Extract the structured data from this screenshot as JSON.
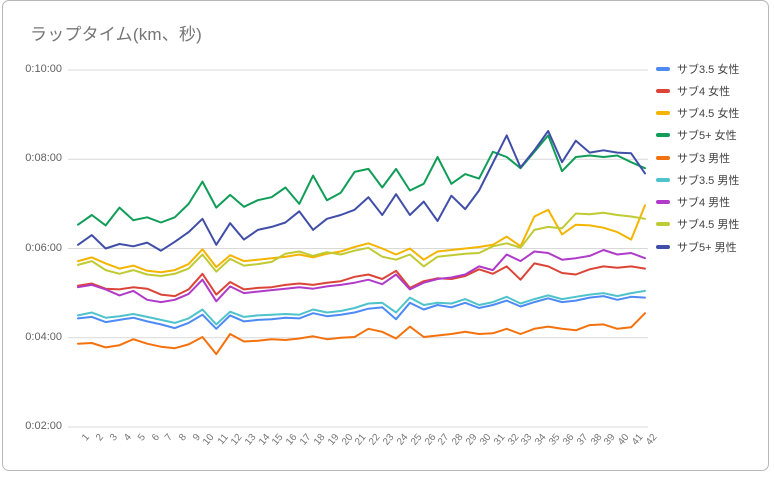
{
  "window": {
    "background": "#ffffff",
    "frame_border_color": "#b7b7b7"
  },
  "chart_data": {
    "type": "line",
    "title": "ラップタイム(km、秒)",
    "title_color": "#757575",
    "xlabel": "",
    "ylabel": "",
    "grid": true,
    "grid_color": "#d9d9d9",
    "legend_position": "right",
    "x": [
      1,
      2,
      3,
      4,
      5,
      6,
      7,
      8,
      9,
      10,
      11,
      12,
      13,
      14,
      15,
      16,
      17,
      18,
      19,
      20,
      21,
      22,
      23,
      24,
      25,
      26,
      27,
      28,
      29,
      30,
      31,
      32,
      33,
      34,
      35,
      36,
      37,
      38,
      39,
      40,
      41,
      42
    ],
    "y_axis": {
      "tick_labels": [
        "0:10:00",
        "0:08:00",
        "0:06:00",
        "0:04:00",
        "0:02:00"
      ],
      "tick_seconds": [
        600,
        480,
        360,
        240,
        120
      ],
      "min_seconds": 120,
      "max_seconds": 600
    },
    "series": [
      {
        "name": "サブ3.5 女性",
        "color": "#4E8AF4",
        "values_seconds": [
          266,
          268,
          261,
          264,
          267,
          262,
          258,
          253,
          260,
          271,
          252,
          270,
          262,
          264,
          265,
          267,
          266,
          273,
          269,
          271,
          274,
          279,
          281,
          265,
          287,
          278,
          284,
          281,
          287,
          280,
          284,
          290,
          282,
          288,
          293,
          288,
          290,
          294,
          296,
          291,
          295,
          294
        ]
      },
      {
        "name": "サブ4 女性",
        "color": "#DB4437",
        "values_seconds": [
          310,
          313,
          306,
          305,
          308,
          306,
          298,
          296,
          305,
          326,
          298,
          315,
          305,
          307,
          308,
          311,
          313,
          311,
          314,
          316,
          322,
          325,
          319,
          330,
          307,
          316,
          320,
          319,
          323,
          332,
          326,
          336,
          318,
          340,
          336,
          327,
          325,
          332,
          336,
          334,
          336,
          333
        ]
      },
      {
        "name": "サブ4.5 女性",
        "color": "#F4B400",
        "values_seconds": [
          343,
          348,
          340,
          333,
          337,
          330,
          328,
          331,
          339,
          359,
          335,
          351,
          343,
          345,
          347,
          349,
          352,
          348,
          353,
          356,
          362,
          367,
          360,
          352,
          360,
          345,
          356,
          358,
          360,
          362,
          365,
          376,
          363,
          403,
          412,
          379,
          392,
          391,
          388,
          382,
          372,
          418
        ]
      },
      {
        "name": "サブ5+ 女性",
        "color": "#109D58",
        "values_seconds": [
          392,
          405,
          391,
          415,
          398,
          402,
          395,
          402,
          420,
          450,
          415,
          432,
          416,
          425,
          429,
          442,
          420,
          458,
          425,
          435,
          463,
          467,
          442,
          467,
          438,
          447,
          483,
          447,
          460,
          454,
          490,
          483,
          468,
          490,
          512,
          464,
          483,
          485,
          483,
          485,
          476,
          468
        ]
      },
      {
        "name": "サブ3 男性",
        "color": "#F4720D",
        "values_seconds": [
          232,
          233,
          227,
          230,
          238,
          232,
          228,
          226,
          231,
          241,
          218,
          245,
          235,
          236,
          238,
          237,
          239,
          242,
          238,
          240,
          241,
          252,
          248,
          239,
          255,
          241,
          243,
          245,
          248,
          245,
          246,
          252,
          245,
          252,
          255,
          252,
          250,
          257,
          258,
          252,
          254,
          273
        ]
      },
      {
        "name": "サブ3.5 男性",
        "color": "#4EC3CB",
        "values_seconds": [
          270,
          274,
          267,
          269,
          272,
          268,
          264,
          260,
          266,
          278,
          258,
          275,
          268,
          270,
          271,
          272,
          271,
          278,
          274,
          276,
          280,
          286,
          287,
          274,
          294,
          284,
          287,
          286,
          292,
          284,
          288,
          295,
          286,
          292,
          297,
          292,
          295,
          298,
          300,
          296,
          300,
          303
        ]
      },
      {
        "name": "サブ4 男性",
        "color": "#B03BC9",
        "values_seconds": [
          308,
          311,
          305,
          297,
          303,
          291,
          288,
          291,
          299,
          318,
          289,
          309,
          300,
          302,
          304,
          306,
          308,
          306,
          309,
          311,
          314,
          318,
          312,
          325,
          305,
          314,
          319,
          321,
          325,
          336,
          331,
          352,
          343,
          356,
          354,
          345,
          347,
          350,
          358,
          352,
          354,
          347
        ]
      },
      {
        "name": "サブ4.5 男性",
        "color": "#C0CA33",
        "values_seconds": [
          338,
          343,
          331,
          326,
          331,
          325,
          323,
          326,
          333,
          352,
          329,
          346,
          337,
          339,
          342,
          353,
          356,
          350,
          355,
          352,
          357,
          361,
          349,
          345,
          352,
          336,
          349,
          351,
          353,
          354,
          363,
          367,
          361,
          385,
          389,
          387,
          407,
          406,
          408,
          405,
          403,
          400
        ]
      },
      {
        "name": "サブ5+ 男性",
        "color": "#414EA8",
        "values_seconds": [
          365,
          378,
          360,
          366,
          363,
          368,
          357,
          369,
          382,
          400,
          365,
          394,
          372,
          385,
          389,
          395,
          410,
          385,
          400,
          405,
          412,
          429,
          405,
          433,
          405,
          423,
          397,
          431,
          413,
          438,
          475,
          512,
          469,
          492,
          518,
          476,
          505,
          489,
          492,
          489,
          488,
          461
        ]
      }
    ]
  },
  "layout_text": {
    "x_tick_color": "#757575",
    "y_tick_color": "#616161",
    "legend_text_color": "#424242"
  }
}
